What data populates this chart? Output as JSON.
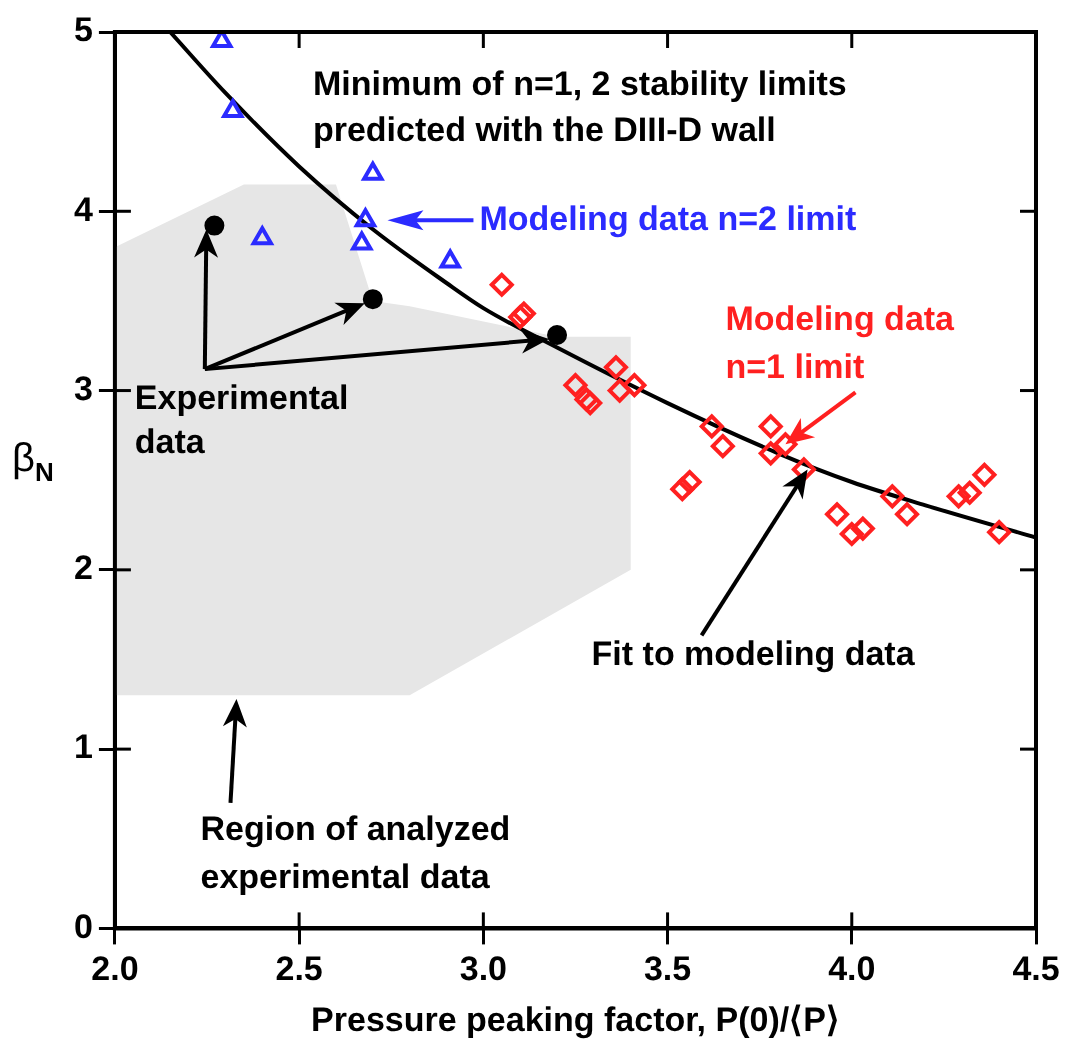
{
  "chart_data": {
    "type": "scatter",
    "xlabel": "Pressure peaking factor, P(0)/⟨P⟩",
    "ylabel": "β$_{N}$",
    "xlim": [
      2.0,
      4.5
    ],
    "xticks": [
      {
        "value": 2,
        "label": "2.0"
      },
      {
        "value": 2.5,
        "label": "2.5"
      },
      {
        "value": 3,
        "label": "3.0"
      },
      {
        "value": 3.5,
        "label": "3.5"
      },
      {
        "value": 4,
        "label": "4.0"
      },
      {
        "value": 4.5,
        "label": "4.5"
      }
    ],
    "ylim": [
      0,
      5
    ],
    "yticks": [
      0,
      1,
      2,
      3,
      4,
      5
    ],
    "grid": false,
    "legend": false,
    "series": [
      {
        "marker": "triangle",
        "color": "#2b2bff",
        "x": [
          2.29,
          2.32,
          2.4,
          2.7,
          2.68,
          2.67,
          2.91
        ],
        "values": [
          4.95,
          4.56,
          3.85,
          4.21,
          3.95,
          3.82,
          3.72
        ]
      },
      {
        "marker": "diamond",
        "color": "#ff2020",
        "x": [
          3.05,
          3.11,
          3.1,
          3.25,
          3.29,
          3.28,
          3.36,
          3.41,
          3.37,
          3.62,
          3.65,
          3.78,
          3.82,
          3.78,
          3.87,
          3.54,
          3.56,
          3.96,
          4.0,
          4.03,
          4.11,
          4.15,
          4.29,
          4.32,
          4.36,
          4.4
        ],
        "values": [
          3.59,
          3.43,
          3.41,
          3.03,
          2.93,
          2.95,
          3.13,
          3.03,
          3.0,
          2.8,
          2.69,
          2.8,
          2.7,
          2.65,
          2.56,
          2.45,
          2.49,
          2.31,
          2.2,
          2.23,
          2.41,
          2.31,
          2.41,
          2.43,
          2.53,
          2.21
        ]
      },
      {
        "marker": "circle",
        "color": "#000000",
        "x": [
          2.27,
          2.7,
          3.2
        ],
        "values": [
          3.92,
          3.51,
          3.31
        ]
      },
      {
        "type": "line",
        "marker": "none",
        "color": "#000000",
        "x": [
          2.15,
          2.3,
          2.5,
          2.7,
          2.9,
          3.0,
          3.2,
          3.5,
          3.8,
          4.0,
          4.2,
          4.5
        ],
        "values": [
          5.0,
          4.66,
          4.25,
          3.9,
          3.6,
          3.46,
          3.24,
          2.93,
          2.65,
          2.49,
          2.36,
          2.18
        ]
      },
      {
        "type": "area",
        "color": "#e6e6e6",
        "x": [
          2.0,
          2.35,
          2.6,
          2.7,
          2.8,
          3.2,
          3.4,
          3.4,
          2.8,
          2.0
        ],
        "values": [
          3.8,
          4.15,
          4.15,
          3.5,
          3.47,
          3.3,
          3.3,
          2.0,
          1.3,
          1.3
        ]
      }
    ],
    "annotations": [
      "Minimum of n=1, 2 stability limits\npredicted with the DIII-D wall",
      "Modeling data n=2 limit",
      {
        "text": "Experimental\ndata",
        "x": 2.7,
        "y": 3.51
      },
      {
        "text": "Modeling data\nn=1 limit",
        "x": 3.82,
        "y": 2.7
      },
      {
        "text": "Fit to modeling data",
        "x": 3.88,
        "y": 2.56
      },
      {
        "text": "Region of analyzed\nexperimental data",
        "x": 2.33,
        "y": 1.28
      }
    ]
  }
}
